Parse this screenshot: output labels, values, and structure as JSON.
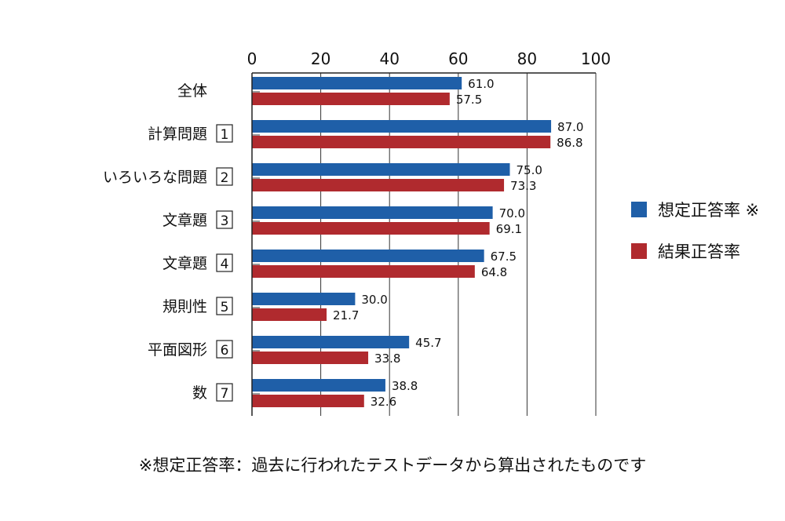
{
  "chart_data": {
    "type": "bar",
    "orientation": "horizontal",
    "categories": [
      {
        "label": "全体",
        "number": ""
      },
      {
        "label": "計算問題",
        "number": "1"
      },
      {
        "label": "いろいろな問題",
        "number": "2"
      },
      {
        "label": "文章題",
        "number": "3"
      },
      {
        "label": "文章題",
        "number": "4"
      },
      {
        "label": "規則性",
        "number": "5"
      },
      {
        "label": "平面図形",
        "number": "6"
      },
      {
        "label": "数",
        "number": "7"
      }
    ],
    "series": [
      {
        "name": "想定正答率 ※",
        "color": "#1f5fa8",
        "values": [
          61.0,
          87.0,
          75.0,
          70.0,
          67.5,
          30.0,
          45.7,
          38.8
        ]
      },
      {
        "name": "結果正答率",
        "color": "#b02a2e",
        "values": [
          57.5,
          86.8,
          73.3,
          69.1,
          64.8,
          21.7,
          33.8,
          32.6
        ]
      }
    ],
    "xlim": [
      0,
      100
    ],
    "xticks": [
      0,
      20,
      40,
      60,
      80,
      100
    ],
    "grid": true,
    "legend_position": "right",
    "footnote": "※想定正答率：過去に行われたテストデータから算出されたものです"
  }
}
